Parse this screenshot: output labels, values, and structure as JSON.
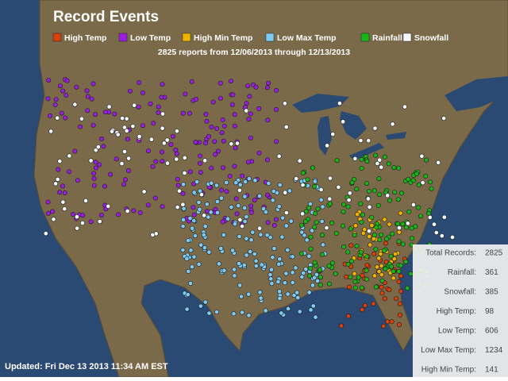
{
  "title": "Record Events",
  "legend": [
    {
      "label": "High Temp",
      "color": "#d8400c"
    },
    {
      "label": "Low Temp",
      "color": "#9a1ee0"
    },
    {
      "label": "High Min Temp",
      "color": "#f0b400"
    },
    {
      "label": "Low Max Temp",
      "color": "#7ecbf2"
    },
    {
      "label": "Rainfall",
      "color": "#18b418"
    },
    {
      "label": "Snowfall",
      "color": "#f4fbff"
    }
  ],
  "subtitle": "2825 reports from 12/06/2013 through 12/13/2013",
  "stats": [
    {
      "label": "Total Records:",
      "value": 2825
    },
    {
      "label": "Rainfall:",
      "value": 361
    },
    {
      "label": "Snowfall:",
      "value": 385
    },
    {
      "label": "High Temp:",
      "value": 98
    },
    {
      "label": "Low Temp:",
      "value": 606
    },
    {
      "label": "Low Max Temp:",
      "value": 1234
    },
    {
      "label": "High Min Temp:",
      "value": 141
    }
  ],
  "updated": "Updated: Fri Dec 13 2013 11:34 AM EST"
}
